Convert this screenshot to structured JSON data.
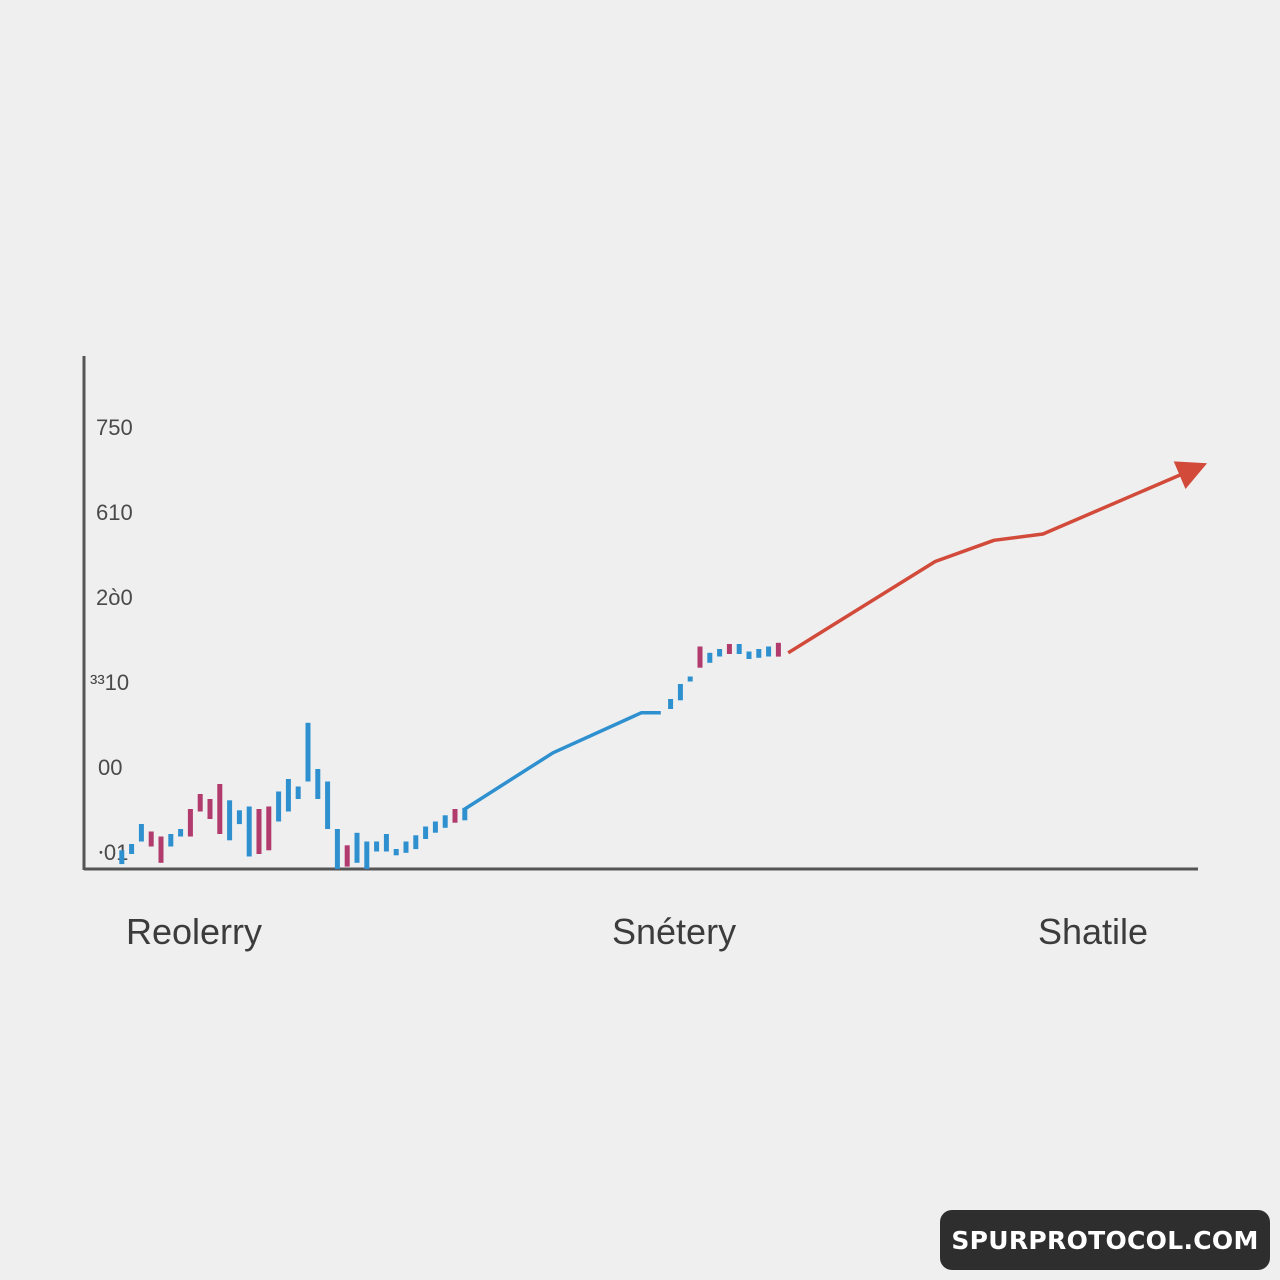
{
  "chart_data": {
    "type": "line",
    "title": "",
    "xlabel": "",
    "ylabel": "",
    "y_tick_labels": [
      "750",
      "610",
      "2ò0",
      "³³10",
      "00",
      "⸱01"
    ],
    "x_category_labels": [
      "Reolerry",
      "Snétery",
      "Shatile"
    ],
    "grid": false,
    "legend": "none",
    "colors": {
      "rise_bar": "#2e90cf",
      "fall_bar": "#b13b6c",
      "trend_line": "#2e90cf",
      "projection_line": "#d24a3a",
      "axis": "#555555"
    },
    "bars": [
      {
        "x": 0.5,
        "open": 0.4,
        "close": 1.5,
        "color": "rise"
      },
      {
        "x": 1.0,
        "open": 1.2,
        "close": 2.0,
        "color": "rise"
      },
      {
        "x": 1.5,
        "open": 2.2,
        "close": 3.6,
        "color": "rise"
      },
      {
        "x": 2.0,
        "open": 3.0,
        "close": 1.8,
        "color": "fall"
      },
      {
        "x": 2.5,
        "open": 0.5,
        "close": 2.6,
        "color": "fall"
      },
      {
        "x": 3.0,
        "open": 1.8,
        "close": 2.8,
        "color": "rise"
      },
      {
        "x": 3.5,
        "open": 2.6,
        "close": 3.2,
        "color": "rise"
      },
      {
        "x": 4.0,
        "open": 2.6,
        "close": 4.8,
        "color": "fall"
      },
      {
        "x": 4.5,
        "open": 4.6,
        "close": 6.0,
        "color": "fall"
      },
      {
        "x": 5.0,
        "open": 4.0,
        "close": 5.6,
        "color": "fall"
      },
      {
        "x": 5.5,
        "open": 2.8,
        "close": 6.8,
        "color": "fall"
      },
      {
        "x": 6.0,
        "open": 2.3,
        "close": 5.5,
        "color": "rise"
      },
      {
        "x": 6.5,
        "open": 3.6,
        "close": 4.7,
        "color": "rise"
      },
      {
        "x": 7.0,
        "open": 5.0,
        "close": 1.0,
        "color": "rise"
      },
      {
        "x": 7.5,
        "open": 1.2,
        "close": 4.8,
        "color": "fall"
      },
      {
        "x": 8.0,
        "open": 5.0,
        "close": 1.5,
        "color": "fall"
      },
      {
        "x": 8.5,
        "open": 3.8,
        "close": 6.2,
        "color": "rise"
      },
      {
        "x": 9.0,
        "open": 7.2,
        "close": 4.6,
        "color": "rise"
      },
      {
        "x": 9.5,
        "open": 5.6,
        "close": 6.6,
        "color": "rise"
      },
      {
        "x": 10.0,
        "open": 11.7,
        "close": 7.0,
        "color": "rise"
      },
      {
        "x": 10.5,
        "open": 8.0,
        "close": 5.6,
        "color": "rise"
      },
      {
        "x": 11.0,
        "open": 7.0,
        "close": 3.2,
        "color": "rise"
      },
      {
        "x": 11.5,
        "open": 3.2,
        "close": 0.0,
        "color": "rise"
      },
      {
        "x": 12.0,
        "open": 1.9,
        "close": 0.2,
        "color": "fall"
      },
      {
        "x": 12.5,
        "open": 0.5,
        "close": 2.9,
        "color": "rise"
      },
      {
        "x": 13.0,
        "open": 2.2,
        "close": 0.0,
        "color": "rise"
      },
      {
        "x": 13.5,
        "open": 1.4,
        "close": 2.2,
        "color": "rise"
      },
      {
        "x": 14.0,
        "open": 1.4,
        "close": 2.8,
        "color": "rise"
      },
      {
        "x": 14.5,
        "open": 1.1,
        "close": 1.6,
        "color": "rise"
      },
      {
        "x": 15.0,
        "open": 1.3,
        "close": 2.2,
        "color": "rise"
      },
      {
        "x": 15.5,
        "open": 1.6,
        "close": 2.7,
        "color": "rise"
      },
      {
        "x": 16.0,
        "open": 2.4,
        "close": 3.4,
        "color": "rise"
      },
      {
        "x": 16.5,
        "open": 2.9,
        "close": 3.8,
        "color": "rise"
      },
      {
        "x": 17.0,
        "open": 3.3,
        "close": 4.3,
        "color": "rise"
      },
      {
        "x": 17.5,
        "open": 3.7,
        "close": 4.8,
        "color": "fall"
      },
      {
        "x": 18.0,
        "open": 3.9,
        "close": 4.9,
        "color": "rise"
      },
      {
        "x": 28.5,
        "open": 12.8,
        "close": 13.6,
        "color": "rise"
      },
      {
        "x": 29.0,
        "open": 13.5,
        "close": 14.8,
        "color": "rise"
      },
      {
        "x": 29.5,
        "open": 15.0,
        "close": 15.4,
        "color": "rise"
      },
      {
        "x": 30.0,
        "open": 16.1,
        "close": 17.8,
        "color": "fall"
      },
      {
        "x": 30.5,
        "open": 16.5,
        "close": 17.3,
        "color": "rise"
      },
      {
        "x": 31.0,
        "open": 17.0,
        "close": 17.6,
        "color": "rise"
      },
      {
        "x": 31.5,
        "open": 17.2,
        "close": 18.0,
        "color": "fall"
      },
      {
        "x": 32.0,
        "open": 17.2,
        "close": 18.0,
        "color": "rise"
      },
      {
        "x": 32.5,
        "open": 16.8,
        "close": 17.4,
        "color": "rise"
      },
      {
        "x": 33.0,
        "open": 16.9,
        "close": 17.6,
        "color": "rise"
      },
      {
        "x": 33.5,
        "open": 17.0,
        "close": 17.8,
        "color": "rise"
      },
      {
        "x": 34.0,
        "open": 17.0,
        "close": 18.1,
        "color": "fall"
      }
    ],
    "trend_line": [
      [
        18.0,
        4.8
      ],
      [
        22.5,
        9.3
      ],
      [
        27.0,
        12.5
      ],
      [
        28.0,
        12.5
      ]
    ],
    "projection_line": [
      [
        34.5,
        17.3
      ],
      [
        42.0,
        24.6
      ],
      [
        45.0,
        26.3
      ],
      [
        47.5,
        26.8
      ],
      [
        55.5,
        32.2
      ]
    ]
  },
  "watermark": "SPURPROTOCOL.COM"
}
